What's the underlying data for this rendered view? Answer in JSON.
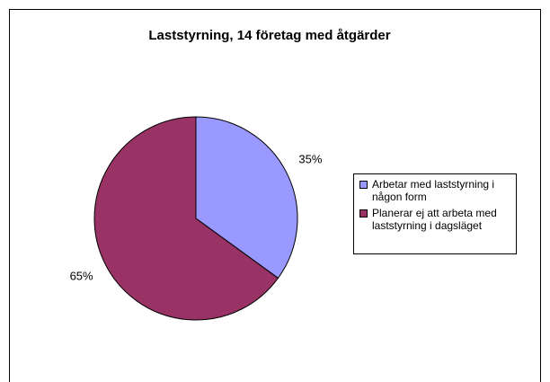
{
  "chart_data": {
    "type": "pie",
    "title": "Laststyrning, 14 företag med åtgärder",
    "categories": [
      "Arbetar med laststyrning i någon form",
      "Planerar ej att arbeta med laststyrning i dagsläget"
    ],
    "values": [
      35,
      65
    ],
    "value_labels": [
      "35%",
      "65%"
    ],
    "colors": [
      "#9999ff",
      "#993366"
    ],
    "legend": "right"
  }
}
